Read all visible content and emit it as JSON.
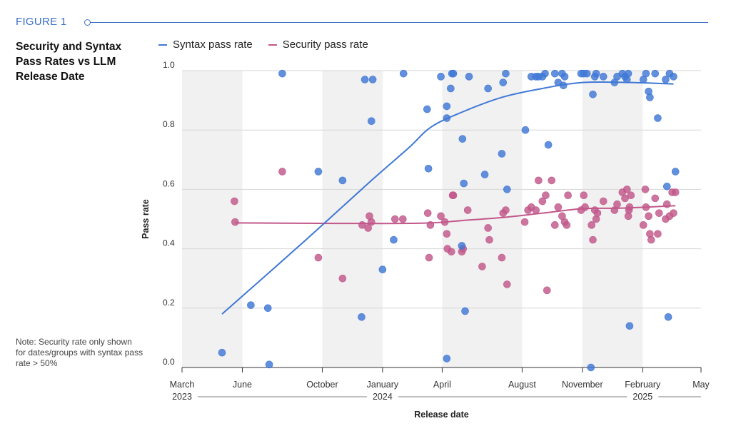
{
  "figure_label": "FIGURE 1",
  "note": "Note: Security rate only shown for dates/groups with syntax pass rate > 50%",
  "colors": {
    "syntax": "#3f78d6",
    "security": "#c1588a",
    "accent": "#3a6fc4",
    "band": "#f1f1f1"
  },
  "chart_data": {
    "type": "scatter",
    "title": "Security and Syntax Pass Rates vs LLM Release Date",
    "xlabel": "Release date",
    "ylabel": "Pass rate",
    "ylim": [
      0.0,
      1.0
    ],
    "xlim": [
      "2023-03-01",
      "2025-05-01"
    ],
    "y_ticks": [
      "0.0",
      "0.2",
      "0.4",
      "0.6",
      "0.8",
      "1.0"
    ],
    "x_ticks": [
      {
        "date": "2023-03-01",
        "label": "March"
      },
      {
        "date": "2023-06-01",
        "label": "June"
      },
      {
        "date": "2023-10-01",
        "label": "October"
      },
      {
        "date": "2024-01-01",
        "label": "January"
      },
      {
        "date": "2024-04-01",
        "label": "April"
      },
      {
        "date": "2024-08-01",
        "label": "August"
      },
      {
        "date": "2024-11-01",
        "label": "November"
      },
      {
        "date": "2025-02-01",
        "label": "February"
      },
      {
        "date": "2025-05-01",
        "label": "May"
      }
    ],
    "years": [
      {
        "date": "2023-03-01",
        "label": "2023"
      },
      {
        "date": "2024-01-01",
        "label": "2024"
      },
      {
        "date": "2025-02-01",
        "label": "2025"
      }
    ],
    "grid": "horizontal",
    "legend_placement": "top",
    "bands": [
      [
        "2023-03-01",
        "2023-06-01"
      ],
      [
        "2023-10-01",
        "2024-01-01"
      ],
      [
        "2024-04-01",
        "2024-08-01"
      ],
      [
        "2024-11-01",
        "2025-02-01"
      ]
    ],
    "series": [
      {
        "name": "Syntax pass rate",
        "scatter": [
          [
            "2023-05-01",
            0.05
          ],
          [
            "2023-06-14",
            0.21
          ],
          [
            "2023-07-10",
            0.2
          ],
          [
            "2023-07-12",
            0.01
          ],
          [
            "2023-08-01",
            0.99
          ],
          [
            "2023-09-25",
            0.66
          ],
          [
            "2023-11-01",
            0.63
          ],
          [
            "2023-11-30",
            0.17
          ],
          [
            "2023-12-05",
            0.97
          ],
          [
            "2023-12-15",
            0.83
          ],
          [
            "2023-12-17",
            0.97
          ],
          [
            "2024-01-01",
            0.33
          ],
          [
            "2024-01-18",
            0.43
          ],
          [
            "2024-02-02",
            0.99
          ],
          [
            "2024-03-09",
            0.87
          ],
          [
            "2024-03-11",
            0.67
          ],
          [
            "2024-03-30",
            0.98
          ],
          [
            "2024-04-08",
            0.88
          ],
          [
            "2024-04-08",
            0.84
          ],
          [
            "2024-04-08",
            0.03
          ],
          [
            "2024-04-14",
            0.94
          ],
          [
            "2024-04-16",
            0.99
          ],
          [
            "2024-04-18",
            0.99
          ],
          [
            "2024-05-01",
            0.41
          ],
          [
            "2024-05-02",
            0.77
          ],
          [
            "2024-05-04",
            0.62
          ],
          [
            "2024-05-06",
            0.19
          ],
          [
            "2024-05-12",
            0.98
          ],
          [
            "2024-06-05",
            0.65
          ],
          [
            "2024-06-10",
            0.94
          ],
          [
            "2024-07-01",
            0.72
          ],
          [
            "2024-07-03",
            0.96
          ],
          [
            "2024-07-07",
            0.99
          ],
          [
            "2024-07-09",
            0.6
          ],
          [
            "2024-08-06",
            0.8
          ],
          [
            "2024-08-15",
            0.98
          ],
          [
            "2024-08-22",
            0.98
          ],
          [
            "2024-08-26",
            0.98
          ],
          [
            "2024-09-01",
            0.98
          ],
          [
            "2024-09-05",
            0.99
          ],
          [
            "2024-09-10",
            0.75
          ],
          [
            "2024-09-20",
            0.99
          ],
          [
            "2024-09-25",
            0.96
          ],
          [
            "2024-10-01",
            0.99
          ],
          [
            "2024-10-03",
            0.95
          ],
          [
            "2024-10-05",
            0.98
          ],
          [
            "2024-10-30",
            0.99
          ],
          [
            "2024-11-03",
            0.99
          ],
          [
            "2024-11-08",
            0.99
          ],
          [
            "2024-11-14",
            0.0
          ],
          [
            "2024-11-17",
            0.92
          ],
          [
            "2024-11-20",
            0.98
          ],
          [
            "2024-11-22",
            0.99
          ],
          [
            "2024-12-03",
            0.98
          ],
          [
            "2024-12-20",
            0.96
          ],
          [
            "2024-12-24",
            0.98
          ],
          [
            "2025-01-01",
            0.99
          ],
          [
            "2025-01-05",
            0.98
          ],
          [
            "2025-01-08",
            0.97
          ],
          [
            "2025-01-10",
            0.99
          ],
          [
            "2025-01-12",
            0.14
          ],
          [
            "2025-02-02",
            0.97
          ],
          [
            "2025-02-06",
            0.99
          ],
          [
            "2025-02-10",
            0.93
          ],
          [
            "2025-02-12",
            0.91
          ],
          [
            "2025-02-20",
            0.99
          ],
          [
            "2025-02-24",
            0.84
          ],
          [
            "2025-03-08",
            0.97
          ],
          [
            "2025-03-10",
            0.61
          ],
          [
            "2025-03-12",
            0.17
          ],
          [
            "2025-03-14",
            0.99
          ],
          [
            "2025-03-20",
            0.98
          ],
          [
            "2025-03-23",
            0.66
          ]
        ],
        "trend": [
          [
            "2023-05-01",
            0.18
          ],
          [
            "2023-09-01",
            0.42
          ],
          [
            "2023-12-15",
            0.63
          ],
          [
            "2024-02-10",
            0.74
          ],
          [
            "2024-03-15",
            0.81
          ],
          [
            "2024-05-01",
            0.86
          ],
          [
            "2024-07-01",
            0.91
          ],
          [
            "2024-09-01",
            0.94
          ],
          [
            "2024-11-01",
            0.96
          ],
          [
            "2025-01-15",
            0.96
          ],
          [
            "2025-03-20",
            0.955
          ]
        ]
      },
      {
        "name": "Security pass rate",
        "scatter": [
          [
            "2023-05-20",
            0.56
          ],
          [
            "2023-05-21",
            0.49
          ],
          [
            "2023-08-01",
            0.66
          ],
          [
            "2023-09-25",
            0.37
          ],
          [
            "2023-11-01",
            0.3
          ],
          [
            "2023-12-01",
            0.48
          ],
          [
            "2023-12-10",
            0.47
          ],
          [
            "2023-12-12",
            0.51
          ],
          [
            "2023-12-15",
            0.49
          ],
          [
            "2024-01-20",
            0.5
          ],
          [
            "2024-02-01",
            0.5
          ],
          [
            "2024-03-10",
            0.52
          ],
          [
            "2024-03-12",
            0.37
          ],
          [
            "2024-03-14",
            0.48
          ],
          [
            "2024-03-30",
            0.51
          ],
          [
            "2024-04-05",
            0.49
          ],
          [
            "2024-04-08",
            0.45
          ],
          [
            "2024-04-09",
            0.4
          ],
          [
            "2024-04-15",
            0.39
          ],
          [
            "2024-04-17",
            0.58
          ],
          [
            "2024-04-18",
            0.58
          ],
          [
            "2024-05-01",
            0.39
          ],
          [
            "2024-05-03",
            0.4
          ],
          [
            "2024-05-10",
            0.53
          ],
          [
            "2024-06-01",
            0.34
          ],
          [
            "2024-06-10",
            0.47
          ],
          [
            "2024-06-12",
            0.43
          ],
          [
            "2024-07-01",
            0.37
          ],
          [
            "2024-07-03",
            0.52
          ],
          [
            "2024-07-07",
            0.53
          ],
          [
            "2024-07-09",
            0.28
          ],
          [
            "2024-08-05",
            0.49
          ],
          [
            "2024-08-10",
            0.53
          ],
          [
            "2024-08-15",
            0.54
          ],
          [
            "2024-08-22",
            0.53
          ],
          [
            "2024-08-26",
            0.63
          ],
          [
            "2024-09-01",
            0.56
          ],
          [
            "2024-09-06",
            0.58
          ],
          [
            "2024-09-08",
            0.26
          ],
          [
            "2024-09-15",
            0.63
          ],
          [
            "2024-09-20",
            0.48
          ],
          [
            "2024-09-25",
            0.54
          ],
          [
            "2024-10-01",
            0.51
          ],
          [
            "2024-10-05",
            0.49
          ],
          [
            "2024-10-08",
            0.48
          ],
          [
            "2024-10-10",
            0.58
          ],
          [
            "2024-10-30",
            0.53
          ],
          [
            "2024-11-03",
            0.58
          ],
          [
            "2024-11-05",
            0.54
          ],
          [
            "2024-11-15",
            0.48
          ],
          [
            "2024-11-17",
            0.43
          ],
          [
            "2024-11-20",
            0.53
          ],
          [
            "2024-11-22",
            0.5
          ],
          [
            "2024-11-24",
            0.52
          ],
          [
            "2024-12-03",
            0.56
          ],
          [
            "2024-12-20",
            0.53
          ],
          [
            "2024-12-24",
            0.55
          ],
          [
            "2025-01-01",
            0.59
          ],
          [
            "2025-01-05",
            0.57
          ],
          [
            "2025-01-08",
            0.6
          ],
          [
            "2025-01-10",
            0.51
          ],
          [
            "2025-01-11",
            0.53
          ],
          [
            "2025-01-12",
            0.54
          ],
          [
            "2025-01-14",
            0.58
          ],
          [
            "2025-02-02",
            0.48
          ],
          [
            "2025-02-05",
            0.6
          ],
          [
            "2025-02-06",
            0.54
          ],
          [
            "2025-02-10",
            0.51
          ],
          [
            "2025-02-12",
            0.45
          ],
          [
            "2025-02-14",
            0.43
          ],
          [
            "2025-02-20",
            0.57
          ],
          [
            "2025-02-24",
            0.45
          ],
          [
            "2025-02-26",
            0.52
          ],
          [
            "2025-03-08",
            0.5
          ],
          [
            "2025-03-10",
            0.55
          ],
          [
            "2025-03-14",
            0.51
          ],
          [
            "2025-03-18",
            0.59
          ],
          [
            "2025-03-20",
            0.52
          ],
          [
            "2025-03-23",
            0.59
          ]
        ],
        "trend": [
          [
            "2023-05-21",
            0.487
          ],
          [
            "2023-09-01",
            0.486
          ],
          [
            "2024-01-01",
            0.485
          ],
          [
            "2024-03-15",
            0.487
          ],
          [
            "2024-05-01",
            0.495
          ],
          [
            "2024-07-01",
            0.505
          ],
          [
            "2024-09-01",
            0.52
          ],
          [
            "2024-11-01",
            0.535
          ],
          [
            "2025-01-01",
            0.537
          ],
          [
            "2025-03-23",
            0.545
          ]
        ]
      }
    ]
  }
}
